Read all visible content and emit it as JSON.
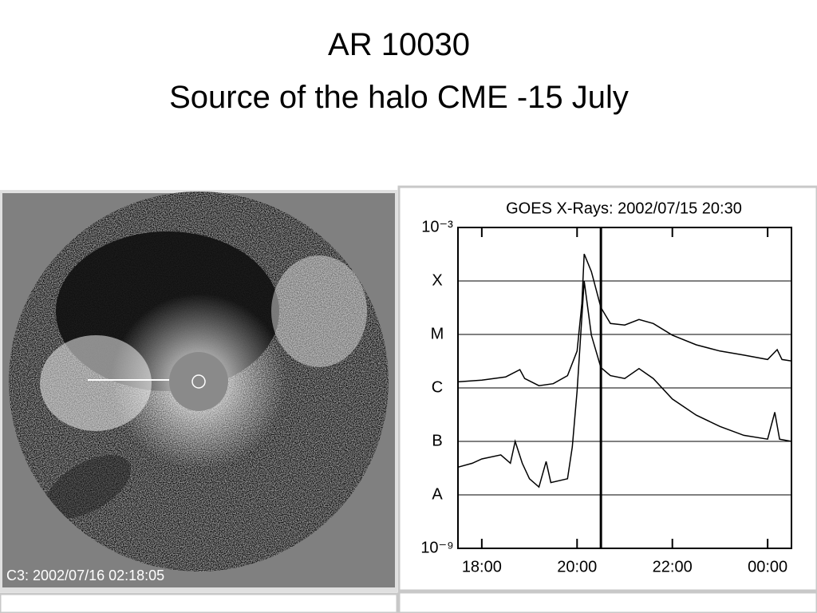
{
  "title": [
    "AR 10030",
    "Source of the halo CME -15 July"
  ],
  "image_caption": "C3: 2002/07/16 02:18:05",
  "chart_data": {
    "type": "line",
    "title": "GOES X-Rays: 2002/07/15 20:30",
    "log_y": true,
    "grid": true,
    "xlim": [
      17.5,
      24.5
    ],
    "xticks": [
      {
        "value": 18,
        "label": "18:00"
      },
      {
        "value": 20,
        "label": "20:00"
      },
      {
        "value": 22,
        "label": "22:00"
      },
      {
        "value": 24,
        "label": "00:00"
      }
    ],
    "ylim": [
      1e-09,
      0.001
    ],
    "yticks": [
      {
        "value": 1e-09,
        "label": "10⁻⁹"
      },
      {
        "value": 1e-08,
        "label": "A"
      },
      {
        "value": 1e-07,
        "label": "B"
      },
      {
        "value": 1e-06,
        "label": "C"
      },
      {
        "value": 1e-05,
        "label": "M"
      },
      {
        "value": 0.0001,
        "label": "X"
      },
      {
        "value": 0.001,
        "label": "10⁻³"
      }
    ],
    "vline_x": 20.5,
    "series": [
      {
        "color": "#000000",
        "x": [
          17.5,
          18.0,
          18.5,
          18.8,
          18.9,
          19.2,
          19.5,
          19.8,
          20.0,
          20.1,
          20.15,
          20.3,
          20.5,
          20.7,
          21.0,
          21.3,
          21.6,
          22.0,
          22.5,
          23.0,
          23.5,
          24.0,
          24.2,
          24.3,
          24.5
        ],
        "values": [
          1.3e-06,
          1.4e-06,
          1.6e-06,
          2.2e-06,
          1.5e-06,
          1.1e-06,
          1.2e-06,
          1.7e-06,
          4.9e-06,
          3.8e-05,
          0.00032,
          0.00015,
          3.2e-05,
          1.6e-05,
          1.5e-05,
          1.9e-05,
          1.6e-05,
          9.7e-06,
          6.4e-06,
          4.9e-06,
          4.1e-06,
          3.4e-06,
          5.2e-06,
          3.4e-06,
          3.2e-06
        ]
      },
      {
        "color": "#000000",
        "x": [
          17.5,
          17.8,
          18.0,
          18.4,
          18.6,
          18.7,
          18.85,
          19.0,
          19.2,
          19.35,
          19.45,
          19.8,
          19.9,
          20.0,
          20.15,
          20.3,
          20.5,
          20.7,
          21.0,
          21.3,
          21.6,
          22.0,
          22.5,
          23.0,
          23.5,
          24.0,
          24.15,
          24.25,
          24.5
        ],
        "values": [
          3.3e-08,
          3.9e-08,
          4.7e-08,
          5.6e-08,
          3.9e-08,
          1e-07,
          3.9e-08,
          2e-08,
          1.4e-08,
          4.2e-08,
          1.7e-08,
          2e-08,
          7.9e-08,
          8.7e-07,
          0.0001,
          9.7e-06,
          2.4e-06,
          1.7e-06,
          1.5e-06,
          2.3e-06,
          1.5e-06,
          6.2e-07,
          3.1e-07,
          1.9e-07,
          1.3e-07,
          1.1e-07,
          3.5e-07,
          1.1e-07,
          1e-07
        ]
      }
    ]
  }
}
